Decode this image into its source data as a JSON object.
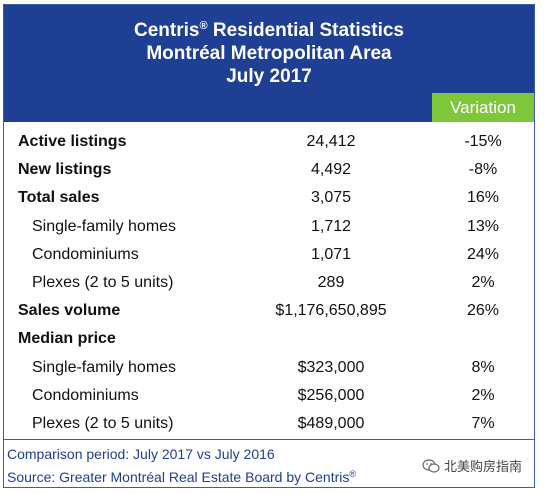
{
  "header": {
    "title_main": "Centris",
    "title_reg": "®",
    "title_rest": " Residential Statistics",
    "line2": "Montréal Metropolitan Area",
    "line3": "July 2017"
  },
  "columns": {
    "variation": "Variation"
  },
  "rows": [
    {
      "label": "Active listings",
      "value": "24,412",
      "variation": "-15%",
      "style": "bold"
    },
    {
      "label": "New listings",
      "value": "4,492",
      "variation": "-8%",
      "style": "bold"
    },
    {
      "label": "Total sales",
      "value": "3,075",
      "variation": "16%",
      "style": "bold"
    },
    {
      "label": "Single-family homes",
      "value": "1,712",
      "variation": "13%",
      "style": "sub"
    },
    {
      "label": "Condominiums",
      "value": "1,071",
      "variation": "24%",
      "style": "sub"
    },
    {
      "label": "Plexes (2 to 5 units)",
      "value": "289",
      "variation": "2%",
      "style": "sub"
    },
    {
      "label": "Sales volume",
      "value": "$1,176,650,895",
      "variation": "26%",
      "style": "bold"
    },
    {
      "label": "Median price",
      "value": "",
      "variation": "",
      "style": "bold"
    },
    {
      "label": "Single-family homes",
      "value": "$323,000",
      "variation": "8%",
      "style": "sub"
    },
    {
      "label": "Condominiums",
      "value": "$256,000",
      "variation": "2%",
      "style": "sub"
    },
    {
      "label": "Plexes (2 to 5 units)",
      "value": "$489,000",
      "variation": "7%",
      "style": "sub"
    }
  ],
  "footer": {
    "comparison": "Comparison period: July 2017 vs July 2016",
    "source": "Source: Greater Montréal Real Estate Board by Centris",
    "source_reg": "®"
  },
  "watermark": {
    "text": "北美购房指南",
    "icon": "wechat-icon"
  },
  "colors": {
    "header_blue": "#1f3f94",
    "variation_green": "#7ec63a",
    "footer_text": "#1f3f94"
  }
}
